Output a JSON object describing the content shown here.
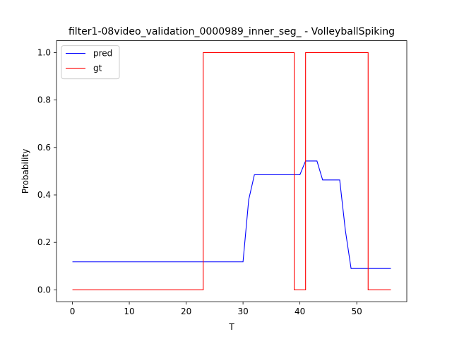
{
  "chart_data": {
    "type": "line",
    "title": "filter1-08video_validation_0000989_inner_seg_ - VolleyballSpiking",
    "xlabel": "T",
    "ylabel": "Probability",
    "xlim": [
      -2.8,
      58.8
    ],
    "ylim": [
      -0.05,
      1.05
    ],
    "xticks": [
      0,
      10,
      20,
      30,
      40,
      50
    ],
    "yticks": [
      0.0,
      0.2,
      0.4,
      0.6,
      0.8,
      1.0
    ],
    "xtick_labels": [
      "0",
      "10",
      "20",
      "30",
      "40",
      "50"
    ],
    "ytick_labels": [
      "0.0",
      "0.2",
      "0.4",
      "0.6",
      "0.8",
      "1.0"
    ],
    "grid": false,
    "legend": {
      "position": "top-left",
      "entries": [
        "pred",
        "gt"
      ]
    },
    "series": [
      {
        "name": "pred",
        "color": "#0000ff",
        "x": [
          0,
          30,
          31,
          32,
          40,
          41,
          43,
          44,
          47,
          48,
          49,
          56
        ],
        "y": [
          0.118,
          0.118,
          0.38,
          0.485,
          0.485,
          0.543,
          0.543,
          0.463,
          0.463,
          0.25,
          0.09,
          0.09
        ]
      },
      {
        "name": "gt",
        "color": "#ff0000",
        "x": [
          0,
          23,
          23,
          39,
          39,
          41,
          41,
          52,
          52,
          56
        ],
        "y": [
          0,
          0,
          1,
          1,
          0,
          0,
          1,
          1,
          0,
          0
        ]
      }
    ]
  }
}
